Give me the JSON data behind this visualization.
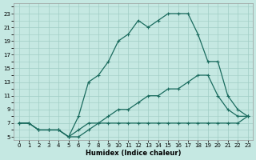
{
  "xlabel": "Humidex (Indice chaleur)",
  "bg_color": "#c5e8e2",
  "line_color": "#1a6b5e",
  "grid_color": "#a0cdc5",
  "xlim_min": -0.5,
  "xlim_max": 23.5,
  "ylim_min": 4.5,
  "ylim_max": 24.5,
  "xticks": [
    0,
    1,
    2,
    3,
    4,
    5,
    6,
    7,
    8,
    9,
    10,
    11,
    12,
    13,
    14,
    15,
    16,
    17,
    18,
    19,
    20,
    21,
    22,
    23
  ],
  "yticks": [
    5,
    7,
    9,
    11,
    13,
    15,
    17,
    19,
    21,
    23
  ],
  "line1_x": [
    0,
    1,
    2,
    3,
    4,
    5,
    6,
    7,
    8,
    9,
    10,
    11,
    12,
    13,
    14,
    15,
    16,
    17,
    18,
    19,
    20,
    21,
    22,
    23
  ],
  "line1_y": [
    7,
    7,
    6,
    6,
    6,
    5,
    5,
    6,
    7,
    7,
    7,
    7,
    7,
    7,
    7,
    7,
    7,
    7,
    7,
    7,
    7,
    7,
    7,
    8
  ],
  "line2_x": [
    0,
    1,
    2,
    3,
    4,
    5,
    6,
    7,
    8,
    9,
    10,
    11,
    12,
    13,
    14,
    15,
    16,
    17,
    18,
    19,
    20,
    21,
    22,
    23
  ],
  "line2_y": [
    7,
    7,
    6,
    6,
    6,
    5,
    6,
    7,
    7,
    8,
    9,
    9,
    10,
    11,
    11,
    12,
    12,
    13,
    14,
    14,
    11,
    9,
    8,
    8
  ],
  "line3_x": [
    0,
    1,
    2,
    3,
    4,
    5,
    6,
    7,
    8,
    9,
    10,
    11,
    12,
    13,
    14,
    15,
    16,
    17,
    18,
    19,
    20,
    21,
    22,
    23
  ],
  "line3_y": [
    7,
    7,
    6,
    6,
    6,
    5,
    8,
    13,
    14,
    16,
    19,
    20,
    22,
    21,
    22,
    23,
    23,
    23,
    20,
    16,
    16,
    11,
    9,
    8
  ],
  "tick_fontsize": 5,
  "label_fontsize": 6
}
